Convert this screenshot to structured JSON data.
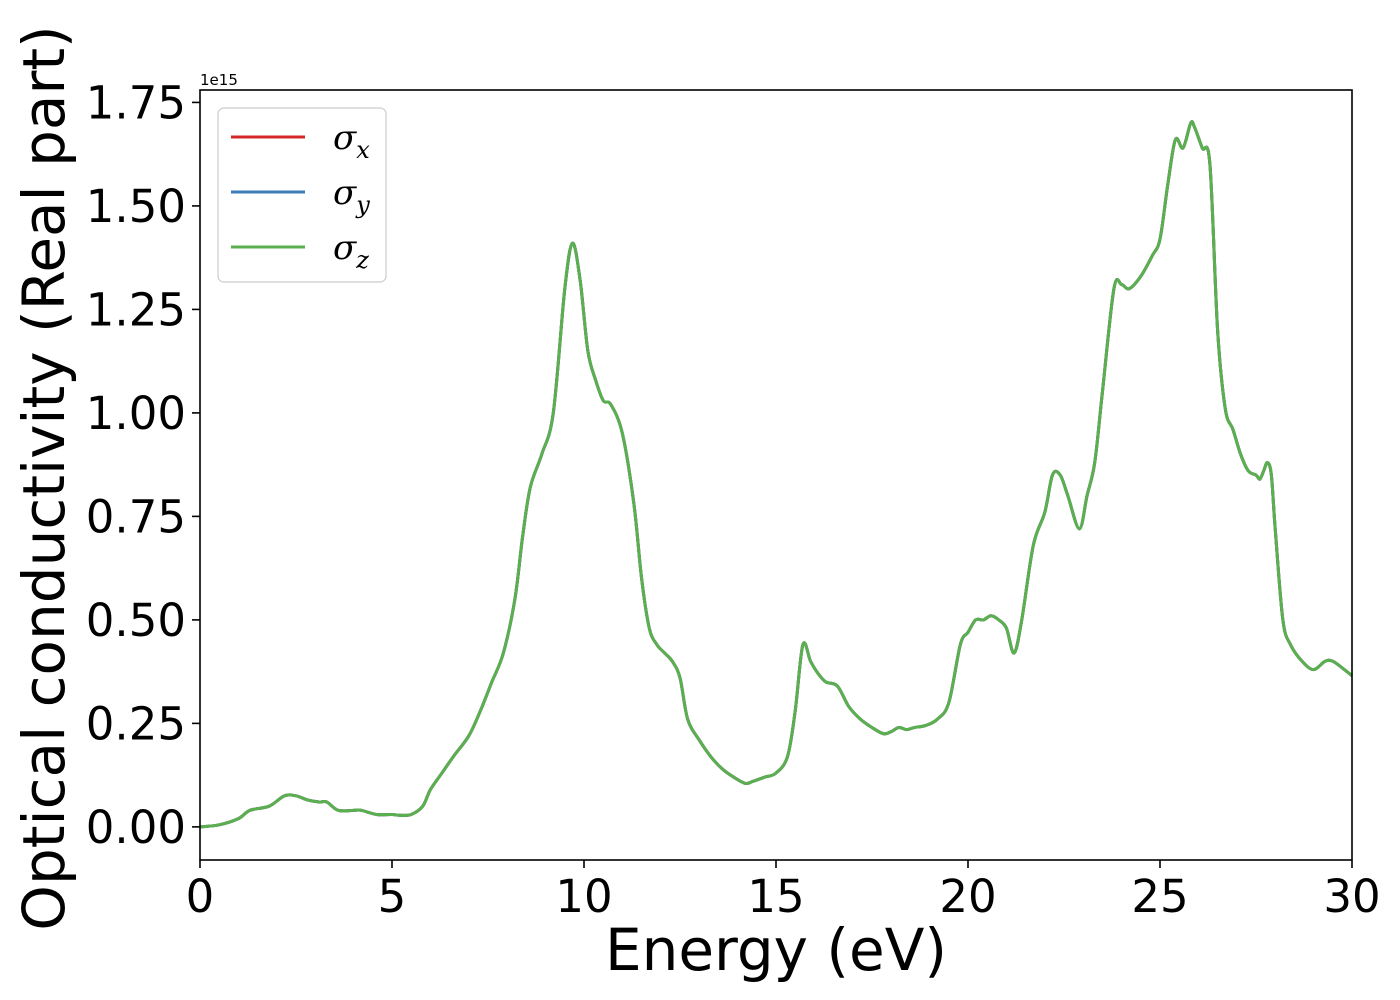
{
  "chart_data": {
    "type": "line",
    "xlabel": "Energy (eV)",
    "ylabel": "Optical conductivity (Real part)",
    "y_offset_label": "1e15",
    "y_scale_factor": 1000000000000000.0,
    "xlim": [
      0,
      30
    ],
    "ylim": [
      -0.08,
      1.78
    ],
    "x_ticks": [
      0,
      5,
      10,
      15,
      20,
      25,
      30
    ],
    "x_tick_labels": [
      "0",
      "5",
      "10",
      "15",
      "20",
      "25",
      "30"
    ],
    "y_ticks": [
      0.0,
      0.25,
      0.5,
      0.75,
      1.0,
      1.25,
      1.5,
      1.75
    ],
    "y_tick_labels": [
      "0.00",
      "0.25",
      "0.50",
      "0.75",
      "1.00",
      "1.25",
      "1.50",
      "1.75"
    ],
    "grid": false,
    "legend_position": "top-left",
    "colors": {
      "sigma_x": "#d62728",
      "sigma_y": "#3b7db8",
      "sigma_z": "#5aaf4f"
    },
    "x": [
      0,
      0.5,
      1.0,
      1.3,
      1.8,
      2.2,
      2.5,
      2.8,
      3.1,
      3.3,
      3.6,
      4.0,
      4.2,
      4.6,
      5.0,
      5.2,
      5.5,
      5.8,
      6.0,
      6.3,
      6.6,
      7.0,
      7.3,
      7.6,
      7.9,
      8.2,
      8.4,
      8.6,
      8.9,
      9.2,
      9.5,
      9.7,
      9.9,
      10.1,
      10.3,
      10.5,
      10.7,
      11.0,
      11.3,
      11.5,
      11.7,
      11.9,
      12.1,
      12.3,
      12.5,
      12.7,
      13.0,
      13.3,
      13.6,
      13.9,
      14.2,
      14.4,
      14.7,
      15.0,
      15.3,
      15.5,
      15.7,
      15.9,
      16.1,
      16.3,
      16.6,
      16.9,
      17.2,
      17.5,
      17.8,
      18.0,
      18.2,
      18.4,
      18.6,
      18.9,
      19.2,
      19.5,
      19.8,
      20.0,
      20.2,
      20.4,
      20.6,
      20.8,
      21.0,
      21.2,
      21.4,
      21.7,
      22.0,
      22.2,
      22.4,
      22.6,
      22.9,
      23.1,
      23.3,
      23.5,
      23.8,
      24.0,
      24.2,
      24.5,
      24.8,
      25.0,
      25.2,
      25.4,
      25.6,
      25.8,
      25.9,
      26.1,
      26.3,
      26.5,
      26.7,
      26.9,
      27.1,
      27.3,
      27.5,
      27.6,
      27.7,
      27.8,
      27.9,
      28.0,
      28.2,
      28.4,
      28.7,
      29.0,
      29.3,
      29.5,
      29.8,
      30.0
    ],
    "series": [
      {
        "name": "σx",
        "values": [
          0.0,
          0.005,
          0.02,
          0.04,
          0.05,
          0.075,
          0.075,
          0.065,
          0.06,
          0.06,
          0.04,
          0.04,
          0.04,
          0.03,
          0.03,
          0.028,
          0.03,
          0.05,
          0.09,
          0.13,
          0.17,
          0.22,
          0.28,
          0.35,
          0.42,
          0.55,
          0.7,
          0.82,
          0.9,
          1.0,
          1.3,
          1.41,
          1.32,
          1.15,
          1.08,
          1.03,
          1.02,
          0.95,
          0.78,
          0.6,
          0.48,
          0.44,
          0.42,
          0.4,
          0.36,
          0.26,
          0.21,
          0.17,
          0.14,
          0.12,
          0.105,
          0.11,
          0.12,
          0.13,
          0.17,
          0.28,
          0.44,
          0.4,
          0.37,
          0.35,
          0.34,
          0.29,
          0.26,
          0.24,
          0.225,
          0.23,
          0.24,
          0.235,
          0.24,
          0.245,
          0.26,
          0.3,
          0.44,
          0.47,
          0.5,
          0.5,
          0.51,
          0.5,
          0.48,
          0.42,
          0.5,
          0.68,
          0.76,
          0.85,
          0.85,
          0.8,
          0.72,
          0.8,
          0.88,
          1.05,
          1.3,
          1.31,
          1.3,
          1.33,
          1.38,
          1.42,
          1.55,
          1.66,
          1.64,
          1.7,
          1.69,
          1.64,
          1.6,
          1.2,
          1.01,
          0.96,
          0.9,
          0.86,
          0.85,
          0.84,
          0.86,
          0.88,
          0.85,
          0.72,
          0.5,
          0.44,
          0.4,
          0.38,
          0.4,
          0.4,
          0.38,
          0.365
        ]
      },
      {
        "name": "σy",
        "values": [
          0.0,
          0.005,
          0.02,
          0.04,
          0.05,
          0.075,
          0.075,
          0.065,
          0.06,
          0.06,
          0.04,
          0.04,
          0.04,
          0.03,
          0.03,
          0.028,
          0.03,
          0.05,
          0.09,
          0.13,
          0.17,
          0.22,
          0.28,
          0.35,
          0.42,
          0.55,
          0.7,
          0.82,
          0.9,
          1.0,
          1.3,
          1.41,
          1.32,
          1.15,
          1.08,
          1.03,
          1.02,
          0.95,
          0.78,
          0.6,
          0.48,
          0.44,
          0.42,
          0.4,
          0.36,
          0.26,
          0.21,
          0.17,
          0.14,
          0.12,
          0.105,
          0.11,
          0.12,
          0.13,
          0.17,
          0.28,
          0.44,
          0.4,
          0.37,
          0.35,
          0.34,
          0.29,
          0.26,
          0.24,
          0.225,
          0.23,
          0.24,
          0.235,
          0.24,
          0.245,
          0.26,
          0.3,
          0.44,
          0.47,
          0.5,
          0.5,
          0.51,
          0.5,
          0.48,
          0.42,
          0.5,
          0.68,
          0.76,
          0.85,
          0.85,
          0.8,
          0.72,
          0.8,
          0.88,
          1.05,
          1.3,
          1.31,
          1.3,
          1.33,
          1.38,
          1.42,
          1.55,
          1.66,
          1.64,
          1.7,
          1.69,
          1.64,
          1.6,
          1.2,
          1.01,
          0.96,
          0.9,
          0.86,
          0.85,
          0.84,
          0.86,
          0.88,
          0.85,
          0.72,
          0.5,
          0.44,
          0.4,
          0.38,
          0.4,
          0.4,
          0.38,
          0.365
        ]
      },
      {
        "name": "σz",
        "values": [
          0.0,
          0.005,
          0.02,
          0.04,
          0.05,
          0.075,
          0.075,
          0.065,
          0.06,
          0.06,
          0.04,
          0.04,
          0.04,
          0.03,
          0.03,
          0.028,
          0.03,
          0.05,
          0.09,
          0.13,
          0.17,
          0.22,
          0.28,
          0.35,
          0.42,
          0.55,
          0.7,
          0.82,
          0.9,
          1.0,
          1.3,
          1.41,
          1.32,
          1.15,
          1.08,
          1.03,
          1.02,
          0.95,
          0.78,
          0.6,
          0.48,
          0.44,
          0.42,
          0.4,
          0.36,
          0.26,
          0.21,
          0.17,
          0.14,
          0.12,
          0.105,
          0.11,
          0.12,
          0.13,
          0.17,
          0.28,
          0.44,
          0.4,
          0.37,
          0.35,
          0.34,
          0.29,
          0.26,
          0.24,
          0.225,
          0.23,
          0.24,
          0.235,
          0.24,
          0.245,
          0.26,
          0.3,
          0.44,
          0.47,
          0.5,
          0.5,
          0.51,
          0.5,
          0.48,
          0.42,
          0.5,
          0.68,
          0.76,
          0.85,
          0.85,
          0.8,
          0.72,
          0.8,
          0.88,
          1.05,
          1.3,
          1.31,
          1.3,
          1.33,
          1.38,
          1.42,
          1.55,
          1.66,
          1.64,
          1.7,
          1.69,
          1.64,
          1.6,
          1.2,
          1.01,
          0.96,
          0.9,
          0.86,
          0.85,
          0.84,
          0.86,
          0.88,
          0.85,
          0.72,
          0.5,
          0.44,
          0.4,
          0.38,
          0.4,
          0.4,
          0.38,
          0.365
        ]
      }
    ],
    "legend": [
      {
        "symbol": "σ",
        "sub": "x"
      },
      {
        "symbol": "σ",
        "sub": "y"
      },
      {
        "symbol": "σ",
        "sub": "z"
      }
    ]
  }
}
